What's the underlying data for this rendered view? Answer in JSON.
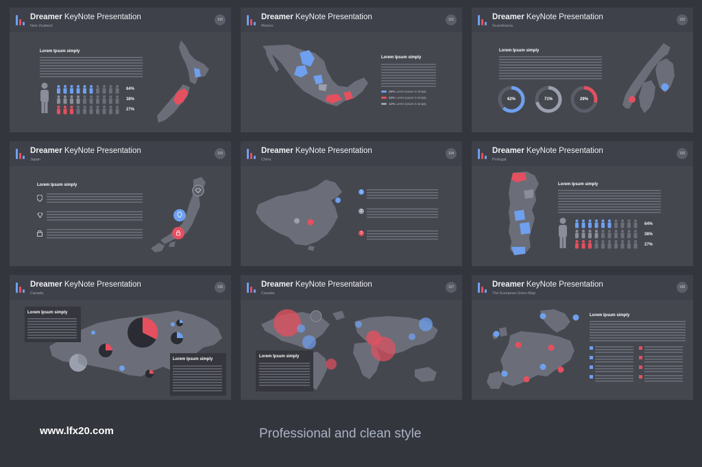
{
  "brand": {
    "bold": "Dreamer",
    "rest": " KeyNote Presentation"
  },
  "slides": [
    {
      "subtitle": "New Zealand",
      "number": "100",
      "heading": "Lorem Ipsum simply",
      "stats": [
        "64%",
        "38%",
        "27%"
      ]
    },
    {
      "subtitle": "Mexico",
      "number": "101",
      "heading": "Lorem Ipsum simply",
      "legend": [
        {
          "pct": "45%",
          "text": "Lorem ipsum is simply",
          "color": "#6fa0ef"
        },
        {
          "pct": "43%",
          "text": "Lorem ipsum is simply",
          "color": "#e4505f"
        },
        {
          "pct": "12%",
          "text": "Lorem ipsum is simply",
          "color": "#9aa0ad"
        }
      ]
    },
    {
      "subtitle": "Scandinavia",
      "number": "102",
      "heading": "Lorem Ipsum simply",
      "rings": [
        "62%",
        "71%",
        "29%"
      ]
    },
    {
      "subtitle": "Japan",
      "number": "103",
      "heading": "Lorem Ipsum simply"
    },
    {
      "subtitle": "China",
      "number": "104"
    },
    {
      "subtitle": "Portugal",
      "number": "105",
      "heading": "Lorem Ipsum simply",
      "stats": [
        "64%",
        "38%",
        "27%"
      ]
    },
    {
      "subtitle": "Canada",
      "number": "106",
      "heading": "Lorem Ipsum simply",
      "heading2": "Lorem Ipsum simply"
    },
    {
      "subtitle": "Canada",
      "number": "107",
      "heading": "Lorem Ipsum simply"
    },
    {
      "subtitle": "The European Union Map",
      "number": "108",
      "heading": "Lorem Ipsum simply"
    }
  ],
  "footer": {
    "url": "www.lfx20.com",
    "tagline": "Professional and clean style"
  },
  "colors": {
    "blue": "#6fa0ef",
    "red": "#e4505f",
    "gray": "#6b6e78"
  }
}
